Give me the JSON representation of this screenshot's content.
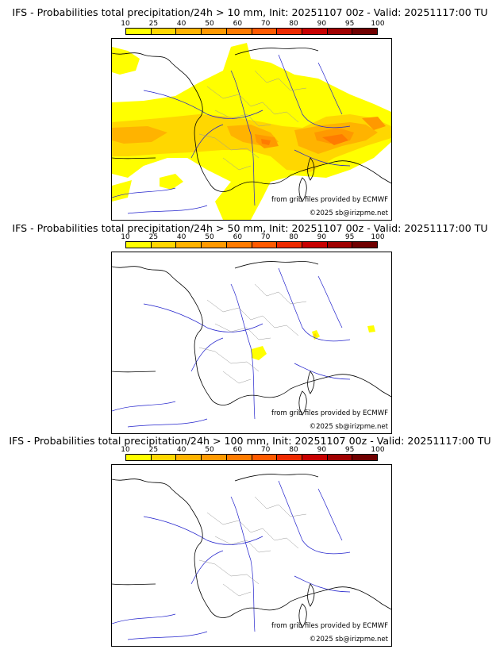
{
  "legend": {
    "ticks": [
      "10",
      "25",
      "40",
      "50",
      "60",
      "70",
      "80",
      "90",
      "95",
      "100"
    ],
    "colors": [
      "#ffff00",
      "#ffd700",
      "#ffb300",
      "#ff9900",
      "#ff7b00",
      "#ff5a00",
      "#ee2a00",
      "#c80000",
      "#a00000",
      "#700000"
    ]
  },
  "panels": [
    {
      "title": "IFS - Probabilities total precipitation/24h > 10 mm, Init: 20251107 00z - Valid: 20251117:00 TU",
      "credit_grib": "from grib files provided by ECMWF",
      "credit_copy": "©2025 sb@irizpme.net"
    },
    {
      "title": "IFS - Probabilities total precipitation/24h > 50 mm, Init: 20251107 00z - Valid: 20251117:00 TU",
      "credit_grib": "from grib files provided by ECMWF",
      "credit_copy": "©2025 sb@irizpme.net"
    },
    {
      "title": "IFS - Probabilities total precipitation/24h > 100 mm, Init: 20251107 00z - Valid: 20251117:00 TU",
      "credit_grib": "from grib files provided by ECMWF",
      "credit_copy": "©2025 sb@irizpme.net"
    }
  ],
  "map": {
    "coast_color": "#000000",
    "border_color": "#999999",
    "river_color": "#2222cc"
  }
}
